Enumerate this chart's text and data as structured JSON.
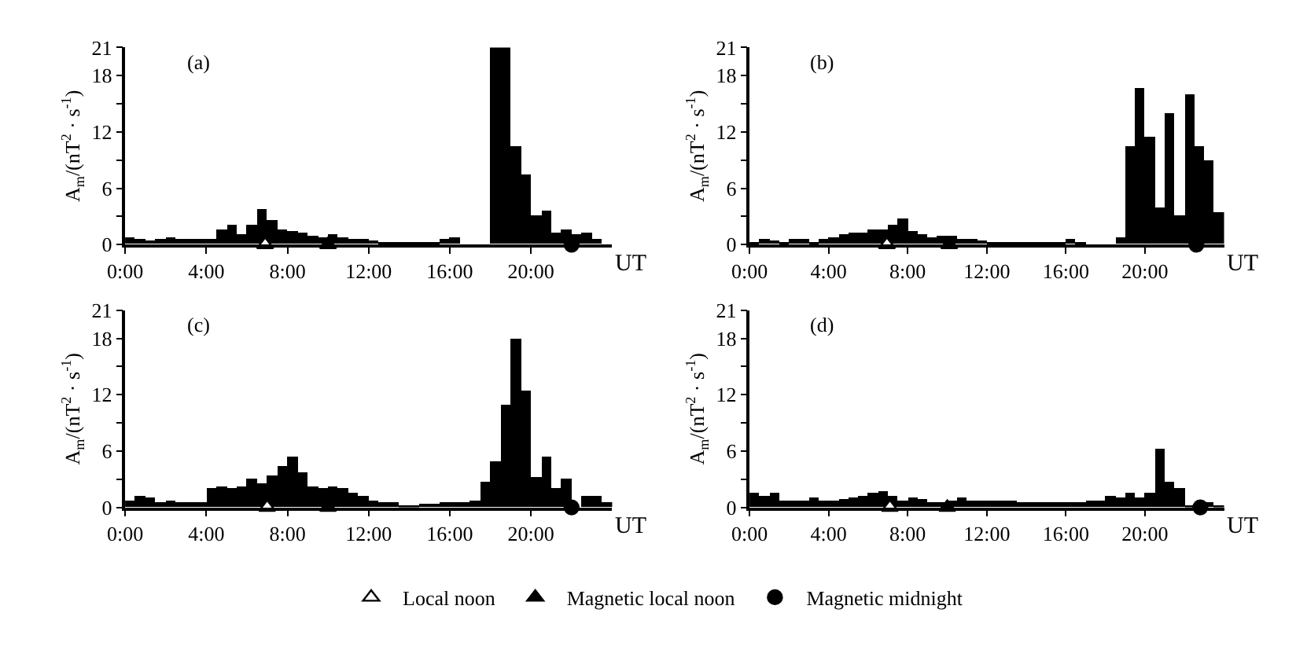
{
  "chart_data": [
    {
      "type": "bar",
      "title": "(a)",
      "xlabel": "UT",
      "ylabel": "A$_{m}$/(nT$^{2}$ · s$^{-1}$)",
      "legend": "bottom",
      "xlim": [
        0,
        24
      ],
      "xticks": [
        {
          "value": 0,
          "label": "0:00"
        },
        {
          "value": 4,
          "label": "4:00"
        },
        {
          "value": 8,
          "label": "8:00"
        },
        {
          "value": 12,
          "label": "12:00"
        },
        {
          "value": 16,
          "label": "16:00"
        },
        {
          "value": 20,
          "label": "20:00"
        }
      ],
      "ylim": [
        0,
        21
      ],
      "yticks": [
        0,
        {
          "value": 3,
          "label": null
        },
        6,
        {
          "value": 9,
          "label": null
        },
        12,
        {
          "value": 15,
          "label": null
        },
        18,
        21
      ],
      "series": [
        {
          "color": "#000000",
          "x": [
            0.25,
            0.75,
            1.25,
            1.75,
            2.25,
            2.75,
            3.25,
            3.75,
            4.25,
            4.75,
            5.25,
            5.75,
            6.25,
            6.75,
            7.25,
            7.75,
            8.25,
            8.75,
            9.25,
            9.75,
            10.25,
            10.75,
            11.25,
            11.75,
            12.25,
            12.75,
            13.25,
            13.75,
            14.25,
            14.75,
            15.25,
            15.75,
            16.25,
            16.75,
            17.25,
            17.75,
            18.25,
            18.75,
            19.25,
            19.75,
            20.25,
            20.75,
            21.25,
            21.75,
            22.25,
            22.75,
            23.25,
            23.75
          ],
          "values": [
            0.8,
            0.5,
            0.4,
            0.5,
            0.7,
            0.5,
            0.5,
            0.5,
            0.5,
            1.5,
            2.0,
            1.0,
            2.0,
            3.8,
            2.5,
            1.5,
            1.4,
            1.2,
            0.9,
            0.8,
            1.0,
            0.8,
            0.6,
            0.5,
            0.4,
            0.3,
            0.2,
            0.1,
            0.1,
            0.1,
            0.1,
            0.6,
            0.7,
            0,
            0,
            0,
            21,
            21,
            10.5,
            7.4,
            3.0,
            3.6,
            1.2,
            1.5,
            1.0,
            1.2,
            0.5,
            0
          ]
        },
        {
          "type": "scatter",
          "name": "Local noon",
          "marker": "triangle",
          "color": "#ffffff",
          "x": [
            6.9
          ],
          "values": [
            0
          ]
        },
        {
          "type": "scatter",
          "name": "Magnetic local noon",
          "marker": "triangle",
          "color": "#000000",
          "x": [
            10.0
          ],
          "values": [
            0
          ]
        },
        {
          "type": "scatter",
          "name": "Magnetic midnight",
          "marker": "circle",
          "color": "#000000",
          "x": [
            22.0
          ],
          "values": [
            0
          ]
        }
      ]
    },
    {
      "type": "bar",
      "title": "(b)",
      "ylabel": "A$_{m}$/(nT$^{2}$ · s$^{-1}$)",
      "xlim": [
        0,
        24
      ],
      "xticks": [
        {
          "value": 0,
          "label": "0:00"
        },
        {
          "value": 4,
          "label": "4:00"
        },
        {
          "value": 8,
          "label": "8:00"
        },
        {
          "value": 12,
          "label": "12:00"
        },
        {
          "value": 16,
          "label": "16:00"
        },
        {
          "value": 20,
          "label": "20:00"
        }
      ],
      "xlabel": "UT",
      "ylim": [
        0,
        21
      ],
      "yticks": [
        0,
        {
          "value": 3,
          "label": null
        },
        6,
        {
          "value": 9,
          "label": null
        },
        12,
        {
          "value": 15,
          "label": null
        },
        18,
        21
      ],
      "series": [
        {
          "color": "#000000",
          "x": [
            0.25,
            0.75,
            1.25,
            1.75,
            2.25,
            2.75,
            3.25,
            3.75,
            4.25,
            4.75,
            5.25,
            5.75,
            6.25,
            6.75,
            7.25,
            7.75,
            8.25,
            8.75,
            9.25,
            9.75,
            10.25,
            10.75,
            11.25,
            11.75,
            12.25,
            12.75,
            13.25,
            13.75,
            14.25,
            14.75,
            15.25,
            15.75,
            16.25,
            16.75,
            17.25,
            17.75,
            18.25,
            18.75,
            19.25,
            19.75,
            20.25,
            20.75,
            21.25,
            21.75,
            22.25,
            22.75,
            23.25,
            23.75
          ],
          "values": [
            0.2,
            0.5,
            0.4,
            0.3,
            0.5,
            0.6,
            0.2,
            0.6,
            0.8,
            1.0,
            1.2,
            1.2,
            1.5,
            1.5,
            2.0,
            2.8,
            1.4,
            1.0,
            0.8,
            0.9,
            0.9,
            0.6,
            0.5,
            0.4,
            0.3,
            0.2,
            0.1,
            0.2,
            0.1,
            0.1,
            0.1,
            0.2,
            0.5,
            0.2,
            0,
            0,
            0,
            0.8,
            10.5,
            16.7,
            11.5,
            4.0,
            14.0,
            3.0,
            16.0,
            10.5,
            9.0,
            3.5
          ]
        },
        {
          "type": "scatter",
          "marker": "triangle",
          "color": "#ffffff",
          "x": [
            6.95
          ],
          "values": [
            0
          ]
        },
        {
          "type": "scatter",
          "marker": "triangle",
          "color": "#000000",
          "x": [
            10.1
          ],
          "values": [
            0
          ]
        },
        {
          "type": "scatter",
          "marker": "circle",
          "color": "#000000",
          "x": [
            22.6
          ],
          "values": [
            0
          ]
        }
      ]
    },
    {
      "type": "bar",
      "title": "(c)",
      "xlabel": "UT",
      "ylabel": "A$_{m}$/(nT$^{2}$ · s$^{-1}$)",
      "xlim": [
        0,
        24
      ],
      "xticks": [
        {
          "value": 0,
          "label": "0:00"
        },
        {
          "value": 4,
          "label": "4:00"
        },
        {
          "value": 8,
          "label": "8:00"
        },
        {
          "value": 12,
          "label": "12:00"
        },
        {
          "value": 16,
          "label": "16:00"
        },
        {
          "value": 20,
          "label": "20:00"
        }
      ],
      "ylim": [
        0,
        21
      ],
      "yticks": [
        0,
        {
          "value": 3,
          "label": null
        },
        6,
        {
          "value": 9,
          "label": null
        },
        12,
        {
          "value": 15,
          "label": null
        },
        18,
        21
      ],
      "series": [
        {
          "color": "#000000",
          "x": [
            0.25,
            0.75,
            1.25,
            1.75,
            2.25,
            2.75,
            3.25,
            3.75,
            4.25,
            4.75,
            5.25,
            5.75,
            6.25,
            6.75,
            7.25,
            7.75,
            8.25,
            8.75,
            9.25,
            9.75,
            10.25,
            10.75,
            11.25,
            11.75,
            12.25,
            12.75,
            13.25,
            13.75,
            14.25,
            14.75,
            15.25,
            15.75,
            16.25,
            16.75,
            17.25,
            17.75,
            18.25,
            18.75,
            19.25,
            19.75,
            20.25,
            20.75,
            21.25,
            21.75,
            22.25,
            22.75,
            23.25,
            23.75
          ],
          "values": [
            0.8,
            1.2,
            1.0,
            0.6,
            0.8,
            0.5,
            0.6,
            0.5,
            2.0,
            2.2,
            2.0,
            2.2,
            3.0,
            2.5,
            3.5,
            4.5,
            5.5,
            3.8,
            2.2,
            2.0,
            2.2,
            2.0,
            1.5,
            1.2,
            0.8,
            0.6,
            0.5,
            0.3,
            0.3,
            0.4,
            0.4,
            0.5,
            0.5,
            0.6,
            0.8,
            2.8,
            5.0,
            11.0,
            18.0,
            12.5,
            3.3,
            5.5,
            2.0,
            3.0,
            null,
            1.2,
            1.2,
            0.6
          ]
        },
        {
          "type": "scatter",
          "marker": "triangle",
          "color": "#ffffff",
          "x": [
            7.0
          ],
          "values": [
            0
          ]
        },
        {
          "type": "scatter",
          "marker": "triangle",
          "color": "#000000",
          "x": [
            10.0
          ],
          "values": [
            0
          ]
        },
        {
          "type": "scatter",
          "marker": "circle",
          "color": "#000000",
          "x": [
            22.0
          ],
          "values": [
            0
          ]
        }
      ]
    },
    {
      "type": "bar",
      "title": "(d)",
      "xlabel": "UT",
      "ylabel": "A$_{m}$/(nT$^{2}$ · s$^{-1}$)",
      "xlim": [
        0,
        24
      ],
      "xticks": [
        {
          "value": 0,
          "label": "0:00"
        },
        {
          "value": 4,
          "label": "4:00"
        },
        {
          "value": 8,
          "label": "8:00"
        },
        {
          "value": 12,
          "label": "12:00"
        },
        {
          "value": 16,
          "label": "16:00"
        },
        {
          "value": 20,
          "label": "20:00"
        }
      ],
      "ylim": [
        0,
        21
      ],
      "yticks": [
        0,
        {
          "value": 3,
          "label": null
        },
        6,
        {
          "value": 9,
          "label": null
        },
        12,
        {
          "value": 15,
          "label": null
        },
        18,
        21
      ],
      "series": [
        {
          "color": "#000000",
          "x": [
            0.25,
            0.75,
            1.25,
            1.75,
            2.25,
            2.75,
            3.25,
            3.75,
            4.25,
            4.75,
            5.25,
            5.75,
            6.25,
            6.75,
            7.25,
            7.75,
            8.25,
            8.75,
            9.25,
            9.75,
            10.25,
            10.75,
            11.25,
            11.75,
            12.25,
            12.75,
            13.25,
            13.75,
            14.25,
            14.75,
            15.25,
            15.75,
            16.25,
            16.75,
            17.25,
            17.75,
            18.25,
            18.75,
            19.25,
            19.75,
            20.25,
            20.75,
            21.25,
            21.75,
            22.25,
            22.75,
            23.25,
            23.75
          ],
          "values": [
            1.5,
            1.2,
            1.5,
            0.8,
            0.7,
            0.8,
            1.0,
            0.8,
            0.8,
            0.9,
            1.0,
            1.2,
            1.5,
            1.8,
            1.2,
            0.8,
            1.0,
            0.9,
            0.6,
            0.6,
            0.8,
            1.0,
            0.8,
            0.7,
            0.8,
            0.7,
            0.8,
            0.6,
            0.5,
            0.6,
            0.5,
            0.6,
            0.5,
            0.6,
            0.7,
            0.8,
            1.2,
            1.0,
            1.5,
            1.0,
            1.5,
            6.3,
            2.8,
            2.0,
            0.3,
            null,
            0.6,
            0.3
          ]
        },
        {
          "type": "scatter",
          "marker": "triangle",
          "color": "#ffffff",
          "x": [
            7.1
          ],
          "values": [
            0
          ]
        },
        {
          "type": "scatter",
          "marker": "triangle",
          "color": "#000000",
          "x": [
            10.0
          ],
          "values": [
            0
          ]
        },
        {
          "type": "scatter",
          "marker": "circle",
          "color": "#000000",
          "x": [
            22.8
          ],
          "values": [
            0
          ]
        }
      ]
    }
  ]
}
